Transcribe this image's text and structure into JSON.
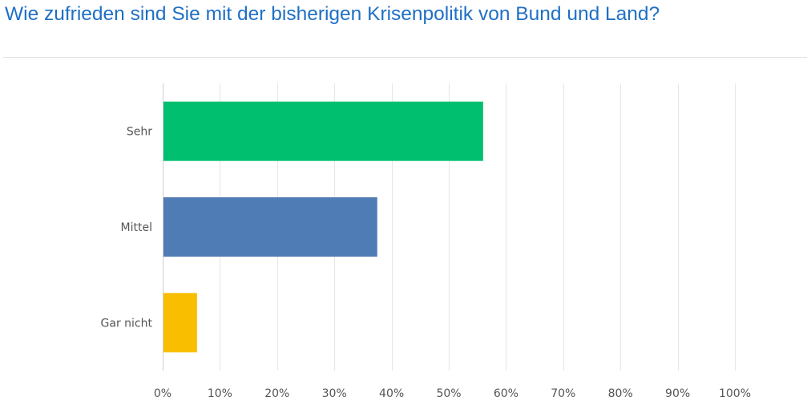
{
  "chart_data": {
    "type": "bar",
    "orientation": "horizontal",
    "title": "Wie zufrieden sind Sie mit der bisherigen Krisenpolitik von Bund und Land?",
    "categories": [
      "Sehr",
      "Mittel",
      "Gar nicht"
    ],
    "values": [
      56,
      37.5,
      6
    ],
    "colors": [
      "#00bf6f",
      "#507cb6",
      "#f9be00"
    ],
    "xlim": [
      0,
      100
    ],
    "ticks": [
      "0%",
      "10%",
      "20%",
      "30%",
      "40%",
      "50%",
      "60%",
      "70%",
      "80%",
      "90%",
      "100%"
    ],
    "grid": true,
    "legend": "none"
  }
}
